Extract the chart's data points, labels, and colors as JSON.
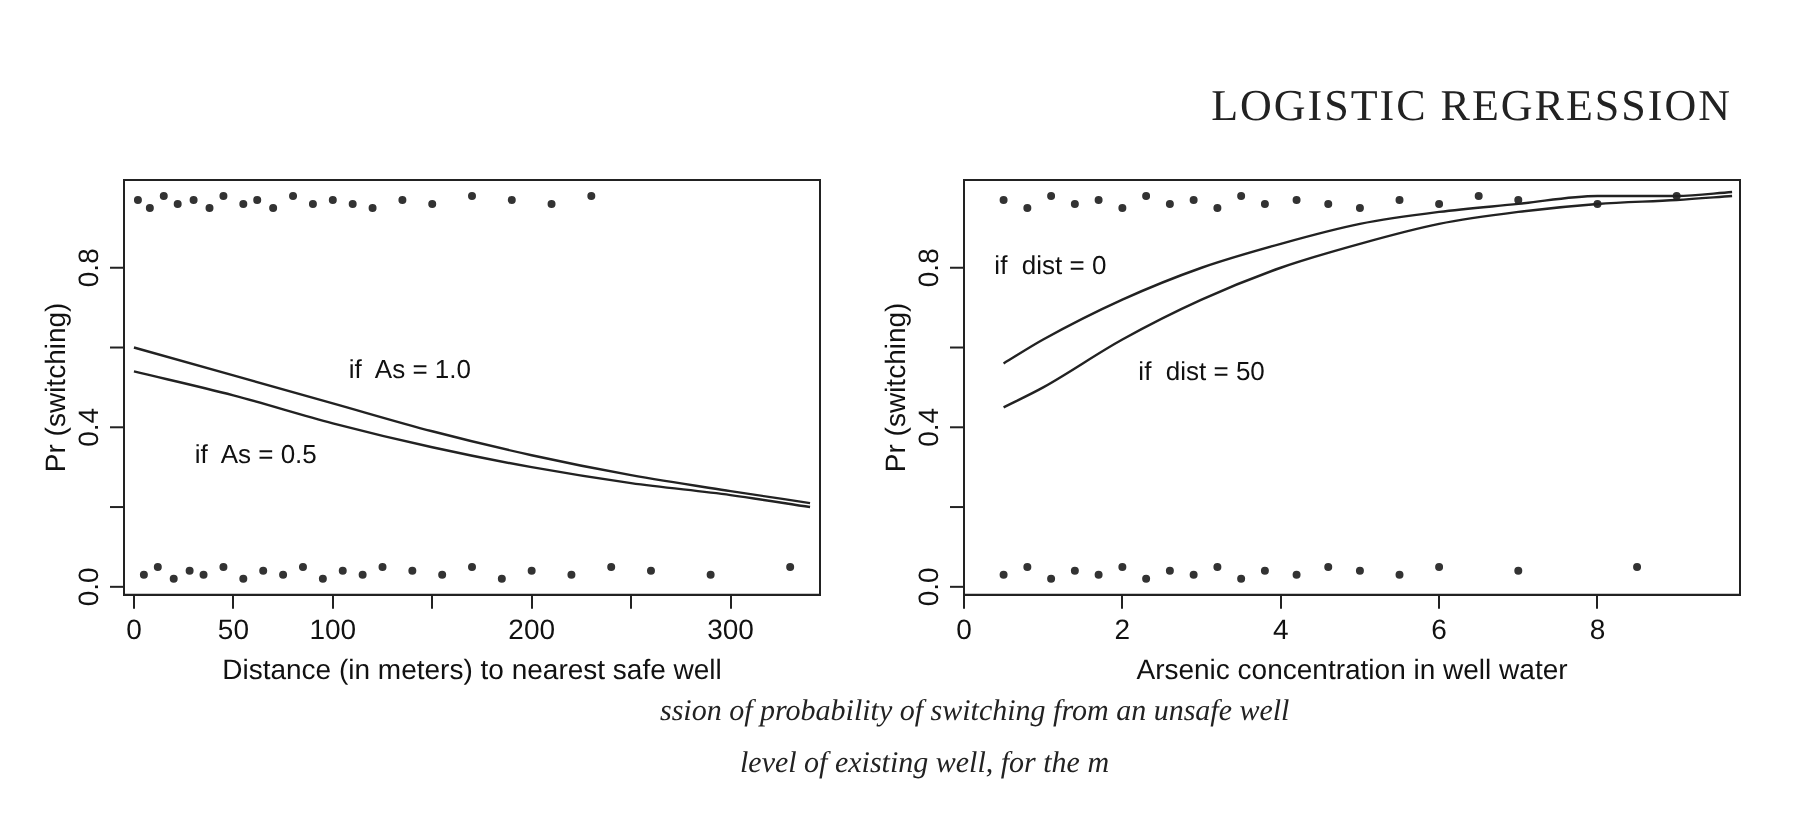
{
  "chart_data": [
    {
      "type": "line",
      "xlabel": "Distance (in meters) to nearest safe well",
      "ylabel": "Pr (switching)",
      "xlim": [
        -5,
        345
      ],
      "ylim": [
        -0.02,
        1.02
      ],
      "xticks": [
        0,
        50,
        100,
        {
          "value": 150,
          "label": null
        },
        200,
        {
          "value": 250,
          "label": null
        },
        300
      ],
      "yticks": [
        {
          "value": 0,
          "label": "0.0"
        },
        {
          "value": 0.2,
          "label": null
        },
        {
          "value": 0.4,
          "label": "0.4"
        },
        {
          "value": 0.6,
          "label": null
        },
        {
          "value": 0.8,
          "label": "0.8"
        }
      ],
      "grid": false,
      "legend": false,
      "line_style": "solid",
      "series": [
        {
          "name": "if  As = 1.0",
          "color": "#222222",
          "x": [
            0,
            50,
            100,
            150,
            200,
            250,
            300,
            340
          ],
          "values": [
            0.6,
            0.53,
            0.46,
            0.39,
            0.33,
            0.28,
            0.24,
            0.21
          ]
        },
        {
          "name": "if  As = 0.5",
          "color": "#222222",
          "x": [
            0,
            50,
            100,
            150,
            200,
            250,
            300,
            340
          ],
          "values": [
            0.54,
            0.48,
            0.41,
            0.35,
            0.3,
            0.26,
            0.23,
            0.2
          ]
        },
        {
          "type": "scatter",
          "color": "#333333",
          "x": [
            2,
            8,
            15,
            22,
            30,
            38,
            45,
            55,
            62,
            70,
            80,
            90,
            100,
            110,
            120,
            135,
            150,
            170,
            190,
            210,
            230,
            5,
            12,
            20,
            28,
            35,
            45,
            55,
            65,
            75,
            85,
            95,
            105,
            115,
            125,
            140,
            155,
            170,
            185,
            200,
            220,
            240,
            260,
            290,
            330
          ],
          "values": [
            0.97,
            0.95,
            0.98,
            0.96,
            0.97,
            0.95,
            0.98,
            0.96,
            0.97,
            0.95,
            0.98,
            0.96,
            0.97,
            0.96,
            0.95,
            0.97,
            0.96,
            0.98,
            0.97,
            0.96,
            0.98,
            0.03,
            0.05,
            0.02,
            0.04,
            0.03,
            0.05,
            0.02,
            0.04,
            0.03,
            0.05,
            0.02,
            0.04,
            0.03,
            0.05,
            0.04,
            0.03,
            0.05,
            0.02,
            0.04,
            0.03,
            0.05,
            0.04,
            0.03,
            0.05
          ]
        }
      ]
    },
    {
      "type": "line",
      "xlabel": "Arsenic concentration in well water",
      "ylabel": "Pr (switching)",
      "xlim": [
        0,
        9.8
      ],
      "ylim": [
        -0.02,
        1.02
      ],
      "xticks": [
        0,
        2,
        4,
        6,
        8
      ],
      "yticks": [
        {
          "value": 0,
          "label": "0.0"
        },
        {
          "value": 0.2,
          "label": null
        },
        {
          "value": 0.4,
          "label": "0.4"
        },
        {
          "value": 0.6,
          "label": null
        },
        {
          "value": 0.8,
          "label": "0.8"
        }
      ],
      "grid": false,
      "legend": false,
      "line_style": "solid",
      "annotations": [
        "LOGISTIC REGRESSION",
        "ssion of probability of switching from an unsafe well",
        "level of existing well, for the m"
      ],
      "series": [
        {
          "name": "if  dist = 0",
          "color": "#222222",
          "x": [
            0.5,
            1,
            2,
            3,
            4,
            5,
            6,
            7,
            8,
            9,
            9.7
          ],
          "values": [
            0.56,
            0.62,
            0.72,
            0.8,
            0.86,
            0.91,
            0.94,
            0.96,
            0.98,
            0.98,
            0.99
          ]
        },
        {
          "name": "if  dist = 50",
          "color": "#222222",
          "x": [
            0.5,
            1,
            2,
            3,
            4,
            5,
            6,
            7,
            8,
            9,
            9.7
          ],
          "values": [
            0.45,
            0.5,
            0.62,
            0.72,
            0.8,
            0.86,
            0.91,
            0.94,
            0.96,
            0.97,
            0.98
          ]
        },
        {
          "type": "scatter",
          "color": "#333333",
          "x": [
            0.5,
            0.8,
            1.1,
            1.4,
            1.7,
            2,
            2.3,
            2.6,
            2.9,
            3.2,
            3.5,
            3.8,
            4.2,
            4.6,
            5,
            5.5,
            6,
            6.5,
            7,
            8,
            9,
            0.5,
            0.8,
            1.1,
            1.4,
            1.7,
            2,
            2.3,
            2.6,
            2.9,
            3.2,
            3.5,
            3.8,
            4.2,
            4.6,
            5,
            5.5,
            6,
            7,
            8.5
          ],
          "values": [
            0.97,
            0.95,
            0.98,
            0.96,
            0.97,
            0.95,
            0.98,
            0.96,
            0.97,
            0.95,
            0.98,
            0.96,
            0.97,
            0.96,
            0.95,
            0.97,
            0.96,
            0.98,
            0.97,
            0.96,
            0.98,
            0.03,
            0.05,
            0.02,
            0.04,
            0.03,
            0.05,
            0.02,
            0.04,
            0.03,
            0.05,
            0.02,
            0.04,
            0.03,
            0.05,
            0.04,
            0.03,
            0.05,
            0.04,
            0.05
          ]
        }
      ]
    }
  ]
}
